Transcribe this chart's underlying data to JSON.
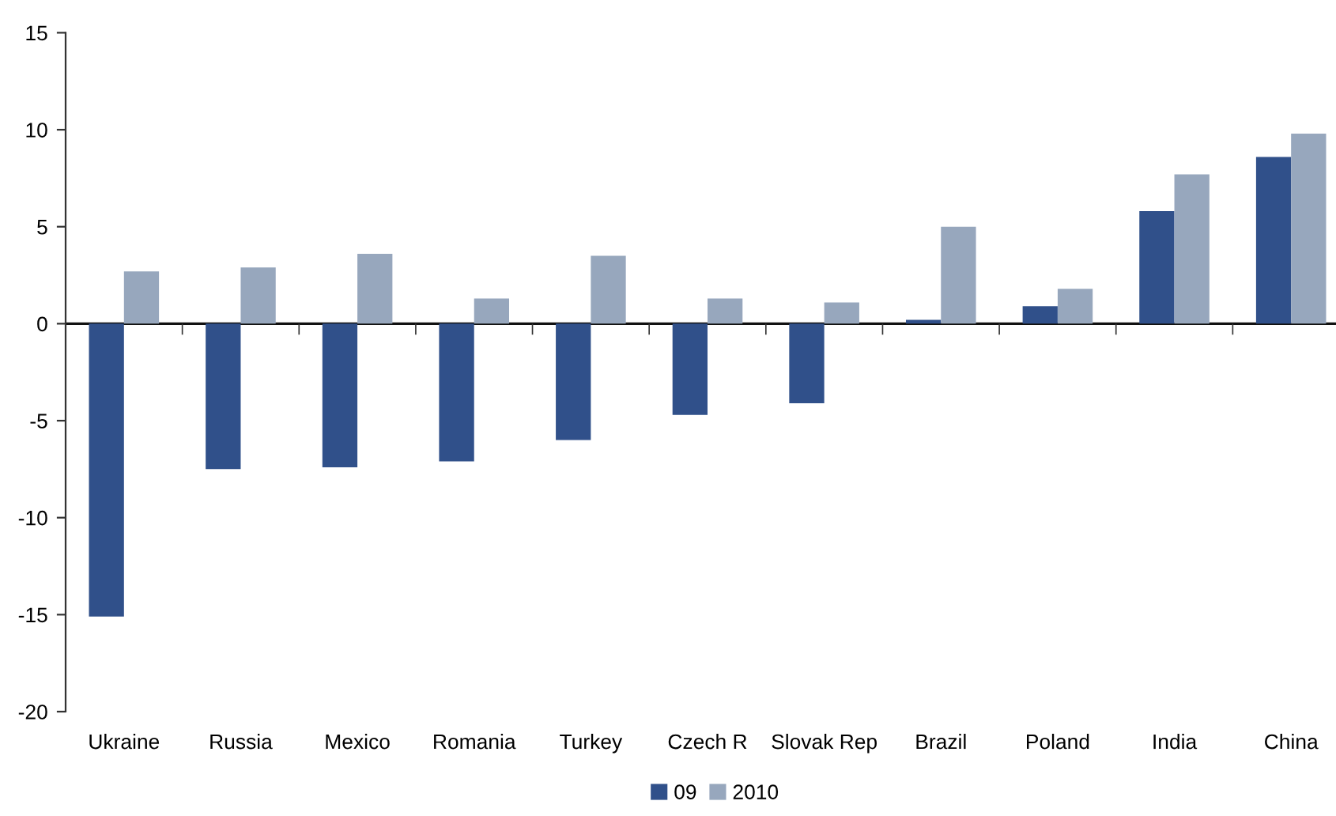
{
  "chart_data": {
    "type": "bar",
    "categories": [
      "Ukraine",
      "Russia",
      "Mexico",
      "Romania",
      "Turkey",
      "Czech R",
      "Slovak Rep",
      "Brazil",
      "Poland",
      "India",
      "China"
    ],
    "series": [
      {
        "name": "09",
        "color": "#30508a",
        "values": [
          -15.1,
          -7.5,
          -7.4,
          -7.1,
          -6.0,
          -4.7,
          -4.1,
          0.2,
          0.9,
          5.8,
          8.6
        ]
      },
      {
        "name": "2010",
        "color": "#97a7bd",
        "values": [
          2.7,
          2.9,
          3.6,
          1.3,
          3.5,
          1.3,
          1.1,
          5.0,
          1.8,
          7.7,
          9.8
        ]
      }
    ],
    "ylim": [
      -20,
      15
    ],
    "yticks": [
      -20,
      -15,
      -10,
      -5,
      0,
      5,
      10,
      15
    ],
    "ref_lines": [
      {
        "axis": "y",
        "value": 0,
        "color": "#111111"
      }
    ],
    "legend": "bottom",
    "grid": false
  }
}
